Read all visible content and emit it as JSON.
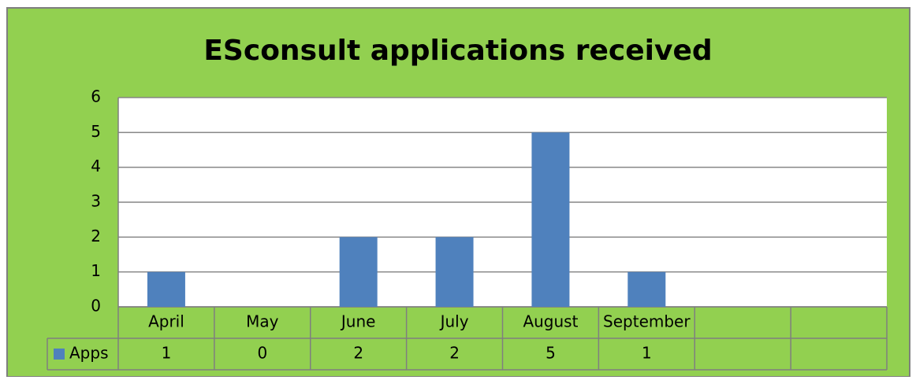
{
  "chart_data": {
    "type": "bar",
    "title": "ESconsult applications received",
    "categories": [
      "April",
      "May",
      "June",
      "July",
      "August",
      "September",
      null,
      null
    ],
    "series": [
      {
        "name": "Apps",
        "color": "#4f81bd",
        "values": [
          1,
          0,
          2,
          2,
          5,
          1,
          null,
          null
        ]
      }
    ],
    "ylim": [
      0,
      6
    ],
    "yticks": [
      0,
      1,
      2,
      3,
      4,
      5,
      6
    ],
    "grid": true,
    "data_table": true
  }
}
